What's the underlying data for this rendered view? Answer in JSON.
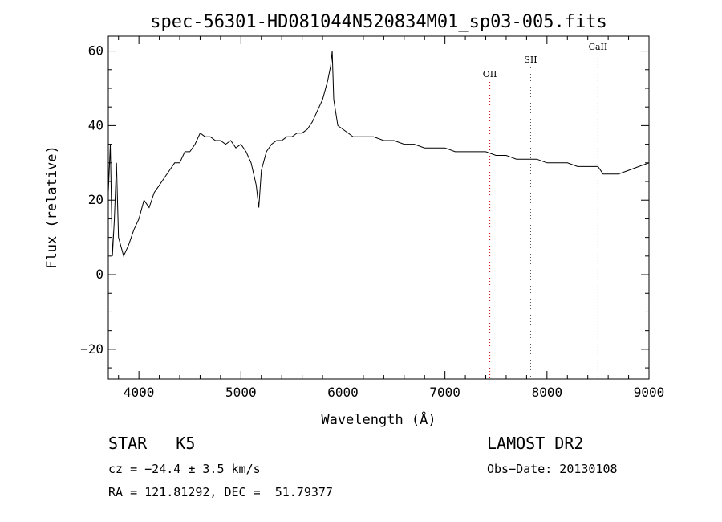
{
  "chart_data": {
    "type": "line",
    "title": "spec-56301-HD081044N520834M01_sp03-005.fits",
    "xlabel": "Wavelength (Å)",
    "ylabel": "Flux (relative)",
    "xlim": [
      3700,
      9000
    ],
    "ylim": [
      -28,
      64
    ],
    "x_ticks": [
      4000,
      5000,
      6000,
      7000,
      8000,
      9000
    ],
    "y_ticks": [
      -20,
      0,
      20,
      40,
      60
    ],
    "grid": false,
    "series": [
      {
        "x": [
          3700,
          3720,
          3740,
          3760,
          3780,
          3800,
          3850,
          3900,
          3950,
          4000,
          4050,
          4100,
          4150,
          4200,
          4250,
          4300,
          4350,
          4400,
          4450,
          4500,
          4550,
          4600,
          4650,
          4700,
          4750,
          4800,
          4850,
          4900,
          4950,
          5000,
          5050,
          5100,
          5150,
          5175,
          5200,
          5250,
          5300,
          5350,
          5400,
          5450,
          5500,
          5550,
          5600,
          5650,
          5700,
          5750,
          5800,
          5850,
          5880,
          5895,
          5910,
          5950,
          6000,
          6100,
          6200,
          6300,
          6400,
          6500,
          6600,
          6700,
          6800,
          6900,
          7000,
          7100,
          7200,
          7300,
          7400,
          7500,
          7600,
          7700,
          7800,
          7900,
          8000,
          8100,
          8200,
          8300,
          8400,
          8500,
          8550,
          8600,
          8700,
          8800,
          8900,
          9000
        ],
        "y": [
          22,
          35,
          5,
          15,
          30,
          10,
          5,
          8,
          12,
          15,
          20,
          18,
          22,
          24,
          26,
          28,
          30,
          30,
          33,
          33,
          35,
          38,
          37,
          37,
          36,
          36,
          35,
          36,
          34,
          35,
          33,
          30,
          24,
          18,
          28,
          33,
          35,
          36,
          36,
          37,
          37,
          38,
          38,
          39,
          41,
          44,
          47,
          52,
          56,
          60,
          47,
          40,
          39,
          37,
          37,
          37,
          36,
          36,
          35,
          35,
          34,
          34,
          34,
          33,
          33,
          33,
          33,
          32,
          32,
          31,
          31,
          31,
          30,
          30,
          30,
          29,
          29,
          29,
          27,
          27,
          27,
          28,
          29,
          30
        ],
        "line_color": "#000000"
      }
    ],
    "annotations": [
      {
        "label": "OII",
        "x": 7440,
        "color": "#cc0000",
        "style": "dotted"
      },
      {
        "label": "SII",
        "x": 7840,
        "color": "#555555",
        "style": "dotted"
      },
      {
        "label": "CaII",
        "x": 8500,
        "color": "#555555",
        "style": "dotted"
      }
    ]
  },
  "footer": {
    "class_label": "STAR   K5",
    "survey": "LAMOST DR2",
    "cz": "cz = −24.4 ± 3.5 km/s",
    "obs_date": "Obs−Date: 20130108",
    "coords": "RA = 121.81292, DEC =  51.79377"
  }
}
